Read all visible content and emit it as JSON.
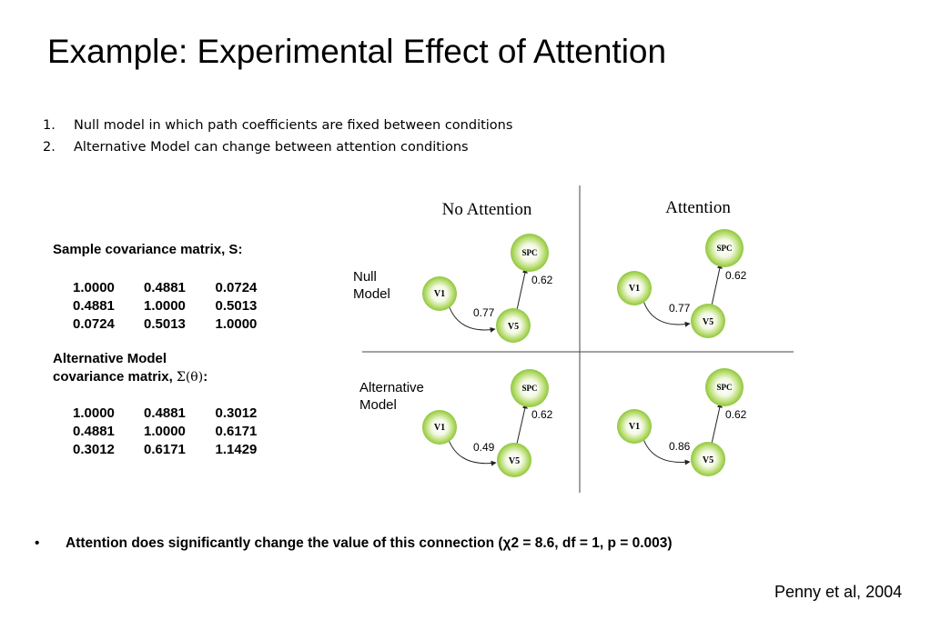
{
  "title": "Example: Experimental Effect of Attention",
  "list": [
    {
      "num": "1.",
      "text": "Null model in which path coefficients are fixed between conditions"
    },
    {
      "num": "2.",
      "text": "Alternative Model can change between attention conditions"
    }
  ],
  "sample_matrix": {
    "title": "Sample covariance matrix, S:",
    "rows": [
      [
        "1.0000",
        "0.4881",
        "0.0724"
      ],
      [
        "0.4881",
        "1.0000",
        "0.5013"
      ],
      [
        "0.0724",
        "0.5013",
        "1.0000"
      ]
    ]
  },
  "alt_matrix": {
    "title_line1": "Alternative Model",
    "title_line2_prefix": "covariance matrix, ",
    "title_line2_symbol": "Σ(θ)",
    "title_line2_suffix": ":",
    "rows": [
      [
        "1.0000",
        "0.4881",
        "0.3012"
      ],
      [
        "0.4881",
        "1.0000",
        "0.6171"
      ],
      [
        "0.3012",
        "0.6171",
        "1.1429"
      ]
    ]
  },
  "diagram": {
    "col_headers": [
      "No Attention",
      "Attention"
    ],
    "row_labels": [
      [
        "Null",
        "Model"
      ],
      [
        "Alternative",
        "Model"
      ]
    ],
    "node_labels": {
      "v1": "V1",
      "v5": "V5",
      "spc": "SPC"
    },
    "panels": [
      {
        "name": "null-no-attention",
        "v1_v5": "0.77",
        "v5_spc": "0.62"
      },
      {
        "name": "null-attention",
        "v1_v5": "0.77",
        "v5_spc": "0.62"
      },
      {
        "name": "alt-no-attention",
        "v1_v5": "0.49",
        "v5_spc": "0.62"
      },
      {
        "name": "alt-attention",
        "v1_v5": "0.86",
        "v5_spc": "0.62"
      }
    ],
    "colors": {
      "node_center": "#ffffff",
      "node_edge": "#8dc63f",
      "node_rim": "#a6d04a"
    }
  },
  "bullet": "Attention does significantly change the value of this connection (χ2 = 8.6, df = 1, p = 0.003)",
  "citation": "Penny et al, 2004"
}
